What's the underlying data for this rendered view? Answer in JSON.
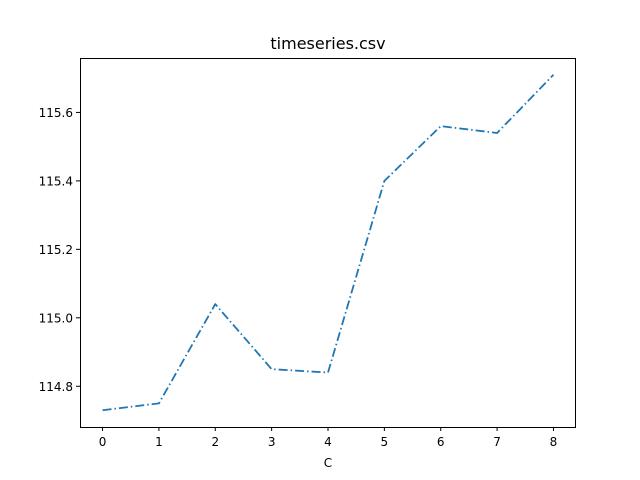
{
  "chart_data": {
    "type": "line",
    "title": "timeseries.csv",
    "xlabel": "C",
    "ylabel": "",
    "x": [
      0,
      1,
      2,
      3,
      4,
      5,
      6,
      7,
      8
    ],
    "series": [
      {
        "values": [
          114.73,
          114.75,
          115.04,
          114.85,
          114.84,
          115.4,
          115.56,
          115.54,
          115.71
        ]
      }
    ],
    "xlim": [
      -0.4,
      8.4
    ],
    "ylim": [
      114.681,
      115.759
    ],
    "xticks": [
      "0",
      "1",
      "2",
      "3",
      "4",
      "5",
      "6",
      "7",
      "8"
    ],
    "yticks": [
      "114.8",
      "115.0",
      "115.2",
      "115.4",
      "115.6"
    ],
    "line_style": "dash-dot",
    "line_color": "#1f77b4",
    "grid": false
  }
}
